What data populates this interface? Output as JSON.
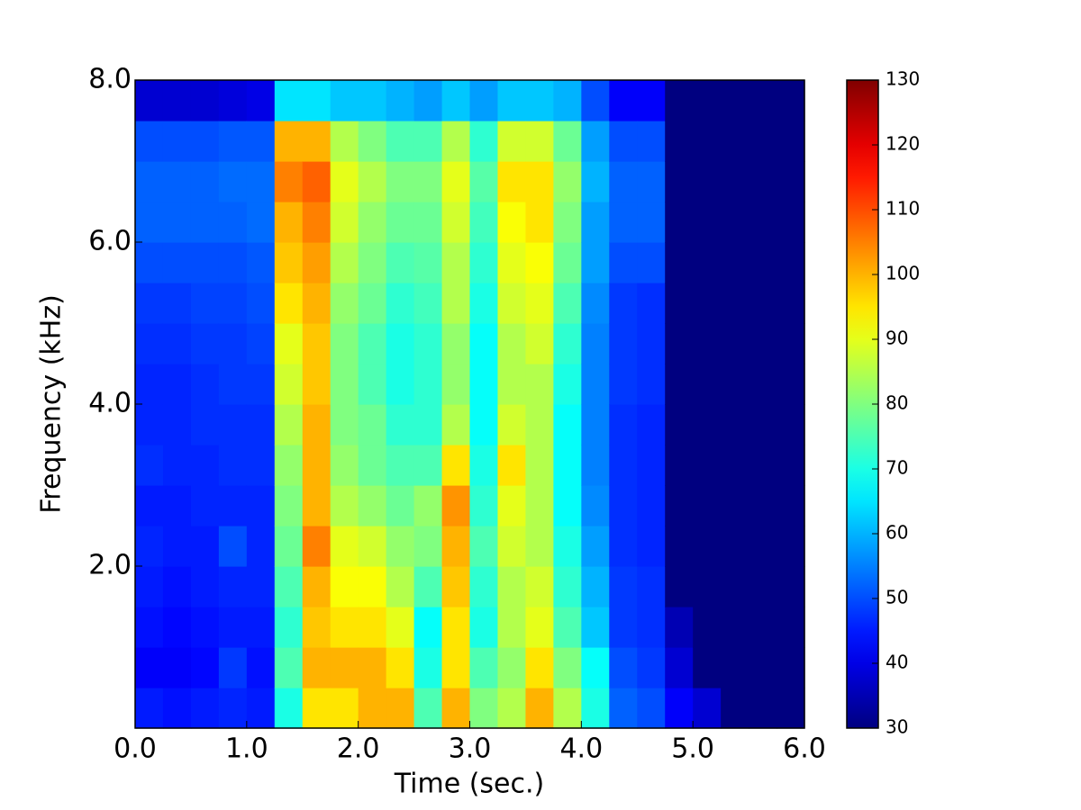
{
  "chart_data": {
    "type": "spectrogram",
    "xlabel": "Time (sec.)",
    "ylabel": "Frequency (kHz)",
    "xlim": [
      0,
      6
    ],
    "ylim": [
      0,
      8
    ],
    "xticks": [
      {
        "value": 0,
        "label": "0.0"
      },
      {
        "value": 1,
        "label": "1.0"
      },
      {
        "value": 2,
        "label": "2.0"
      },
      {
        "value": 3,
        "label": "3.0"
      },
      {
        "value": 4,
        "label": "4.0"
      },
      {
        "value": 5,
        "label": "5.0"
      },
      {
        "value": 6,
        "label": "6.0"
      }
    ],
    "yticks": [
      {
        "value": 2,
        "label": "2.0"
      },
      {
        "value": 4,
        "label": "4.0"
      },
      {
        "value": 6,
        "label": "6.0"
      },
      {
        "value": 8,
        "label": "8.0"
      }
    ],
    "colormap": "jet",
    "clim": [
      30,
      130
    ],
    "cticks": [
      30,
      40,
      50,
      60,
      70,
      80,
      90,
      100,
      110,
      120,
      130
    ],
    "z": [
      [
        45,
        42,
        44,
        45,
        46,
        45,
        47,
        46,
        46,
        47,
        48,
        50,
        52,
        52,
        50,
        38
      ],
      [
        44,
        42,
        43,
        44,
        45,
        45,
        46,
        46,
        46,
        47,
        48,
        50,
        52,
        52,
        50,
        38
      ],
      [
        45,
        43,
        44,
        45,
        45,
        46,
        46,
        47,
        47,
        48,
        49,
        50,
        52,
        52,
        50,
        38
      ],
      [
        46,
        48,
        45,
        46,
        50,
        46,
        47,
        47,
        48,
        48,
        49,
        50,
        52,
        53,
        51,
        39
      ],
      [
        45,
        44,
        45,
        46,
        46,
        46,
        47,
        47,
        48,
        49,
        50,
        51,
        53,
        53,
        51,
        40
      ],
      [
        70,
        75,
        72,
        75,
        78,
        80,
        82,
        85,
        88,
        90,
        95,
        98,
        100,
        105,
        100,
        65
      ],
      [
        95,
        100,
        98,
        100,
        105,
        100,
        100,
        100,
        98,
        98,
        100,
        102,
        105,
        108,
        100,
        65
      ],
      [
        95,
        100,
        95,
        92,
        90,
        85,
        82,
        80,
        80,
        80,
        82,
        85,
        88,
        90,
        85,
        62
      ],
      [
        100,
        100,
        95,
        92,
        88,
        82,
        78,
        78,
        75,
        75,
        78,
        80,
        82,
        85,
        80,
        62
      ],
      [
        100,
        95,
        90,
        85,
        82,
        78,
        75,
        72,
        70,
        70,
        72,
        75,
        78,
        80,
        75,
        60
      ],
      [
        75,
        70,
        68,
        75,
        80,
        82,
        75,
        72,
        72,
        72,
        74,
        76,
        78,
        80,
        75,
        58
      ],
      [
        100,
        95,
        95,
        98,
        100,
        103,
        95,
        85,
        82,
        82,
        85,
        85,
        88,
        90,
        85,
        62
      ],
      [
        80,
        75,
        70,
        72,
        75,
        72,
        70,
        68,
        68,
        68,
        70,
        72,
        74,
        76,
        72,
        58
      ],
      [
        85,
        82,
        85,
        85,
        88,
        90,
        95,
        88,
        85,
        85,
        88,
        90,
        92,
        95,
        88,
        62
      ],
      [
        100,
        95,
        90,
        88,
        85,
        85,
        85,
        85,
        85,
        88,
        90,
        92,
        95,
        95,
        88,
        62
      ],
      [
        85,
        80,
        75,
        72,
        70,
        68,
        68,
        68,
        70,
        72,
        75,
        78,
        80,
        82,
        78,
        60
      ],
      [
        70,
        68,
        62,
        60,
        58,
        56,
        55,
        55,
        55,
        55,
        56,
        58,
        58,
        60,
        58,
        50
      ],
      [
        52,
        50,
        48,
        48,
        47,
        47,
        47,
        47,
        48,
        48,
        48,
        50,
        52,
        52,
        50,
        42
      ],
      [
        50,
        48,
        47,
        47,
        46,
        46,
        46,
        46,
        47,
        47,
        47,
        50,
        52,
        52,
        50,
        42
      ],
      [
        42,
        38,
        35,
        30,
        30,
        30,
        30,
        30,
        30,
        30,
        30,
        30,
        30,
        30,
        30,
        30
      ],
      [
        38,
        30,
        30,
        30,
        30,
        30,
        30,
        30,
        30,
        30,
        30,
        30,
        30,
        30,
        30,
        30
      ],
      [
        30,
        30,
        30,
        30,
        30,
        30,
        30,
        30,
        30,
        30,
        30,
        30,
        30,
        30,
        30,
        30
      ],
      [
        30,
        30,
        30,
        30,
        30,
        30,
        30,
        30,
        30,
        30,
        30,
        30,
        30,
        30,
        30,
        30
      ],
      [
        30,
        30,
        30,
        30,
        30,
        30,
        30,
        30,
        30,
        30,
        30,
        30,
        30,
        30,
        30,
        30
      ]
    ]
  }
}
